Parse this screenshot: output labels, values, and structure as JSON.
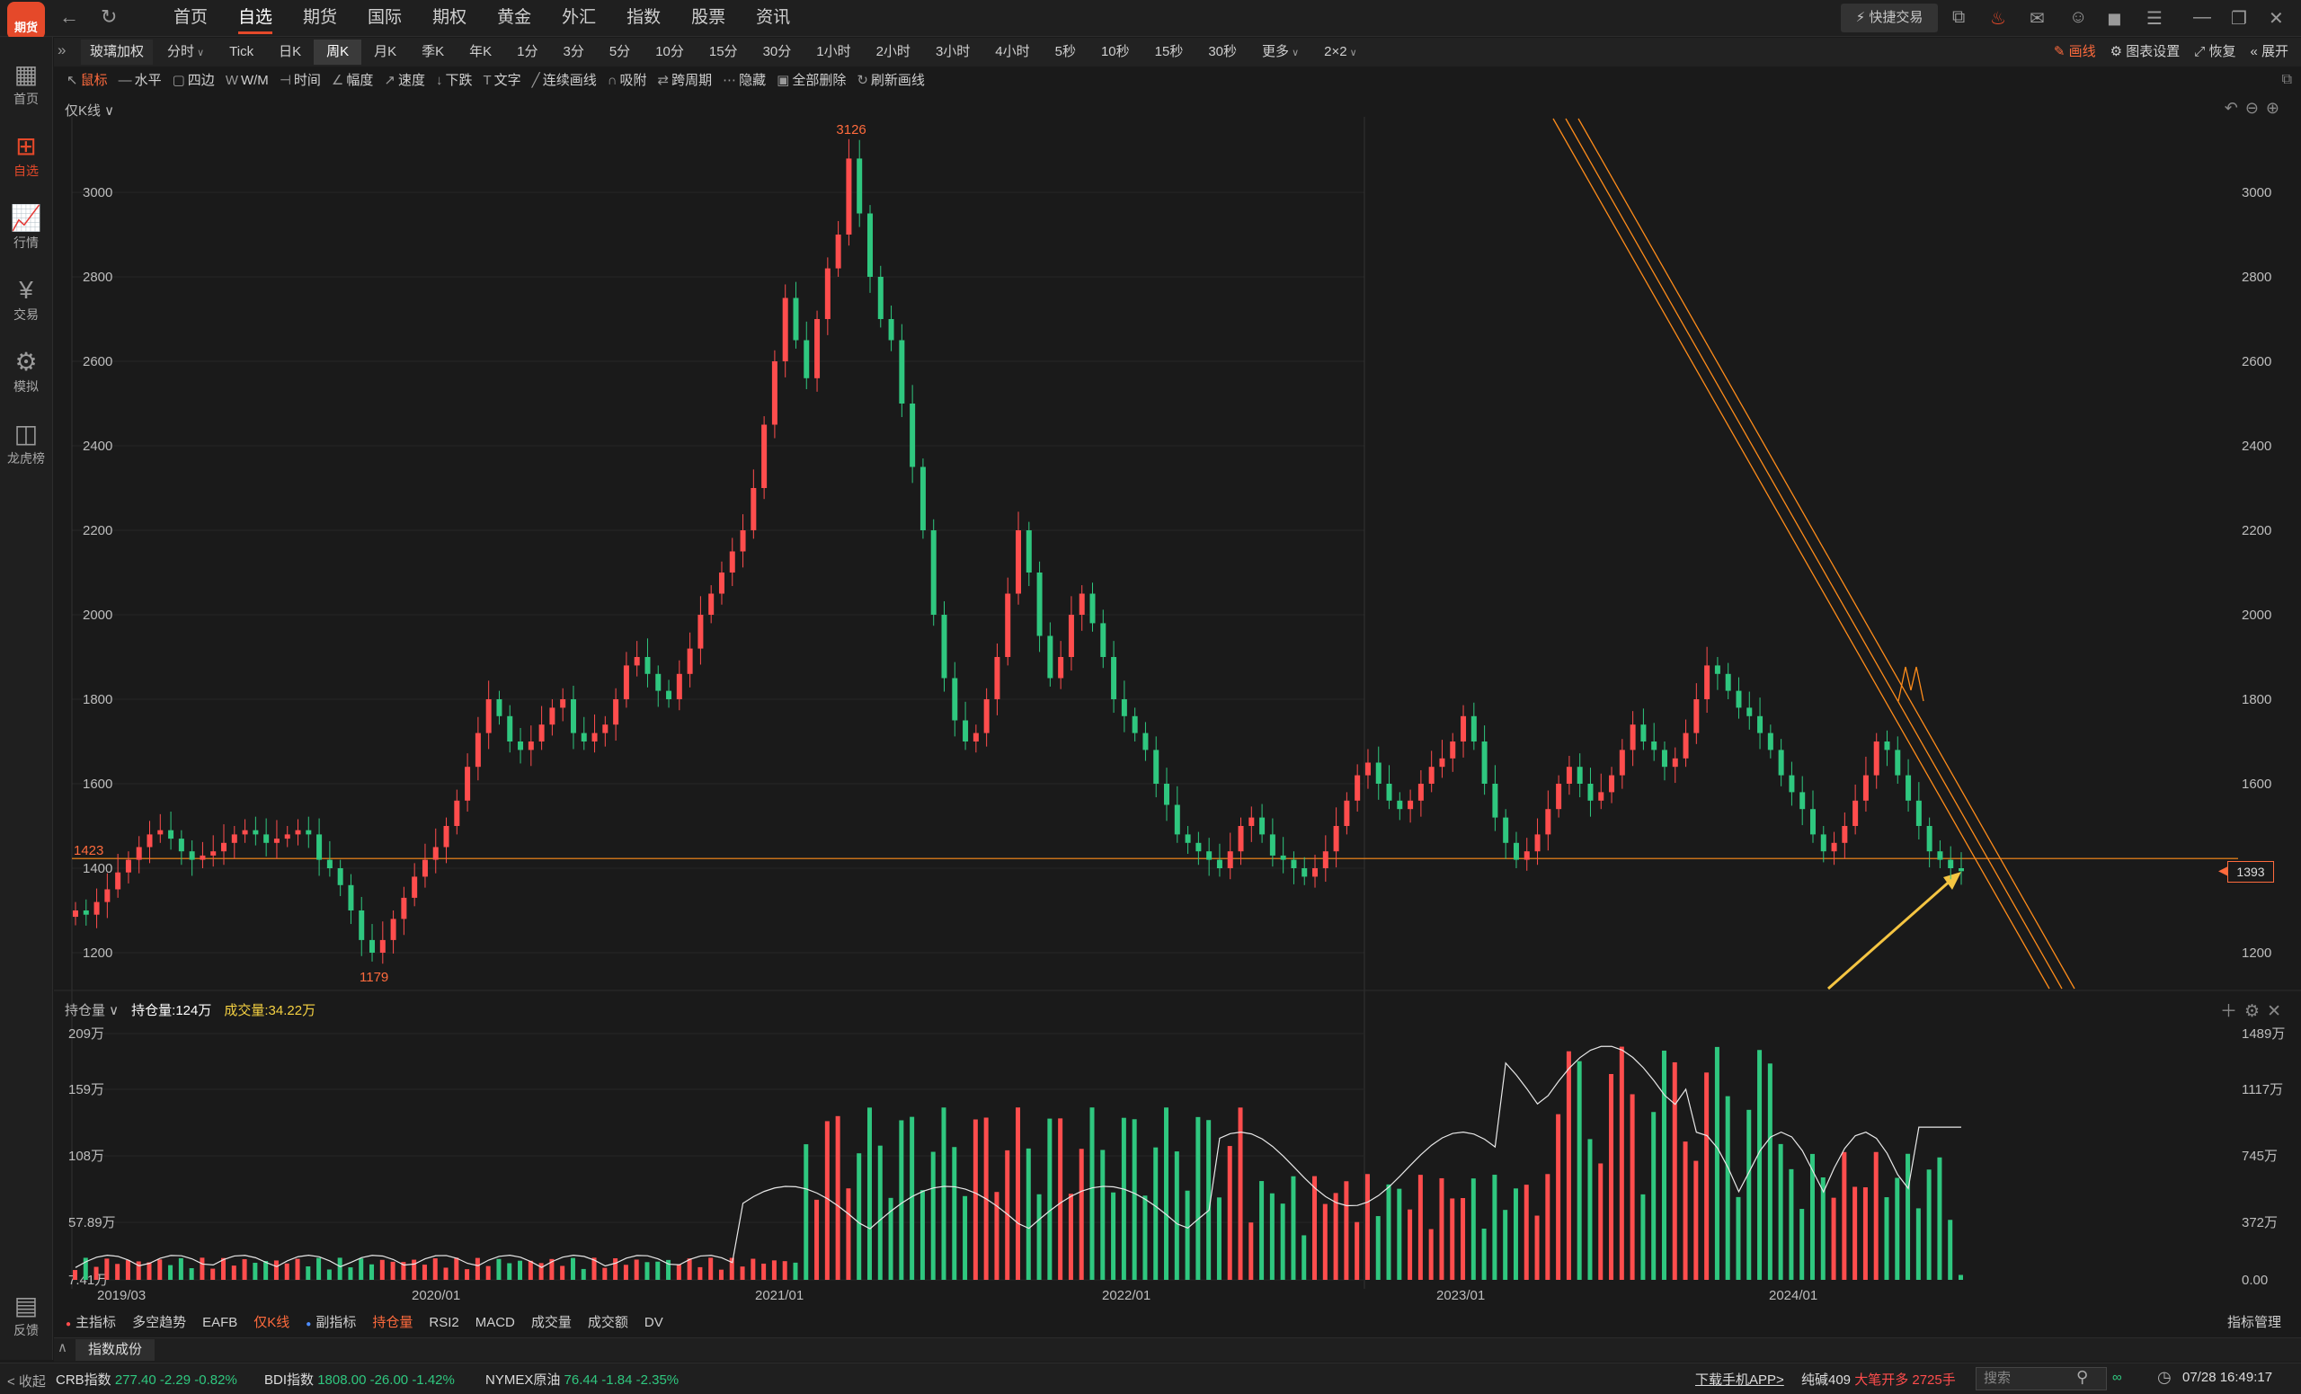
{
  "app": {
    "logo_text": "期货"
  },
  "nav": {
    "back_icon": "back-arrow-icon",
    "refresh_icon": "refresh-icon",
    "items": [
      "首页",
      "自选",
      "期货",
      "国际",
      "期权",
      "黄金",
      "外汇",
      "指数",
      "股票",
      "资讯"
    ],
    "active": "自选"
  },
  "topbar": {
    "quick_trade": "快捷交易"
  },
  "sidebar": {
    "items": [
      {
        "label": "首页",
        "icon": "grid-icon"
      },
      {
        "label": "自选",
        "icon": "plus-square-icon",
        "active": true
      },
      {
        "label": "行情",
        "icon": "chart-icon"
      },
      {
        "label": "交易",
        "icon": "yen-icon"
      },
      {
        "label": "模拟",
        "icon": "gamepad-icon"
      },
      {
        "label": "龙虎榜",
        "icon": "database-icon"
      },
      {
        "label": "反馈",
        "icon": "message-icon"
      },
      {
        "label": "收起",
        "icon": "collapse-icon"
      }
    ]
  },
  "period_bar": {
    "instrument": "玻璃加权",
    "periods": [
      "分时",
      "Tick",
      "日K",
      "周K",
      "月K",
      "季K",
      "年K",
      "1分",
      "3分",
      "5分",
      "10分",
      "15分",
      "30分",
      "1小时",
      "2小时",
      "3小时",
      "4小时",
      "5秒",
      "10秒",
      "15秒",
      "30秒",
      "更多",
      "2×2"
    ],
    "selected": "周K",
    "right_tools": [
      "画线",
      "图表设置",
      "恢复",
      "展开"
    ]
  },
  "draw_tools": [
    "鼠标",
    "水平",
    "四边",
    "W/M",
    "时间",
    "幅度",
    "速度",
    "下跌",
    "文字",
    "连续画线",
    "吸附",
    "跨周期",
    "隐藏",
    "全部删除",
    "刷新画线"
  ],
  "chart": {
    "mode_label": "仅K线",
    "y_ticks": [
      "3000",
      "2800",
      "2600",
      "2400",
      "2200",
      "2000",
      "1800",
      "1600",
      "1400",
      "1200"
    ],
    "high_label": "3126",
    "low_label": "1179",
    "hline_label": "1423",
    "last_price": "1393"
  },
  "chart_data": [
    {
      "type": "candlestick",
      "title": "玻璃加权",
      "period": "周K",
      "ylim": [
        1150,
        3150
      ],
      "y_ticks": [
        1200,
        1400,
        1600,
        1800,
        2000,
        2200,
        2400,
        2600,
        2800,
        3000
      ],
      "annotations": {
        "max": 3126,
        "min": 1179,
        "horizontal_line": 1423,
        "last": 1393
      },
      "close_series_approx": [
        1300,
        1290,
        1320,
        1350,
        1390,
        1420,
        1450,
        1480,
        1490,
        1470,
        1440,
        1420,
        1430,
        1440,
        1460,
        1480,
        1490,
        1480,
        1460,
        1470,
        1480,
        1490,
        1480,
        1420,
        1400,
        1360,
        1300,
        1230,
        1200,
        1230,
        1280,
        1330,
        1380,
        1420,
        1450,
        1500,
        1560,
        1640,
        1720,
        1800,
        1760,
        1700,
        1680,
        1700,
        1740,
        1780,
        1800,
        1720,
        1700,
        1720,
        1740,
        1800,
        1880,
        1900,
        1860,
        1820,
        1800,
        1860,
        1920,
        2000,
        2050,
        2100,
        2150,
        2200,
        2300,
        2450,
        2600,
        2750,
        2650,
        2560,
        2700,
        2820,
        2900,
        3080,
        2950,
        2800,
        2700,
        2650,
        2500,
        2350,
        2200,
        2000,
        1850,
        1750,
        1700,
        1720,
        1800,
        1900,
        2050,
        2200,
        2100,
        1950,
        1850,
        1900,
        2000,
        2050,
        1980,
        1900,
        1800,
        1760,
        1720,
        1680,
        1600,
        1550,
        1480,
        1460,
        1440,
        1420,
        1400,
        1440,
        1500,
        1520,
        1480,
        1430,
        1420,
        1400,
        1380,
        1400,
        1440,
        1500,
        1560,
        1620,
        1650,
        1600,
        1560,
        1540,
        1560,
        1600,
        1640,
        1660,
        1700,
        1760,
        1700,
        1600,
        1520,
        1460,
        1420,
        1440,
        1480,
        1540,
        1600,
        1640,
        1600,
        1560,
        1580,
        1620,
        1680,
        1740,
        1700,
        1680,
        1640,
        1660,
        1720,
        1800,
        1880,
        1860,
        1820,
        1780,
        1760,
        1720,
        1680,
        1620,
        1580,
        1540,
        1480,
        1440,
        1460,
        1500,
        1560,
        1620,
        1700,
        1680,
        1620,
        1560,
        1500,
        1440,
        1420,
        1400,
        1393
      ]
    },
    {
      "type": "bar",
      "title": "持仓量",
      "series": [
        {
          "name": "持仓量",
          "latest": "124万"
        },
        {
          "name": "成交量",
          "latest": "34.22万"
        }
      ],
      "left_axis": [
        "209万",
        "159万",
        "108万",
        "57.89万",
        "7.41万"
      ],
      "right_axis": [
        "1489万",
        "1117万",
        "745万",
        "372万",
        "0.00"
      ],
      "x_ticks": [
        "2019/03",
        "2020/01",
        "2021/01",
        "2022/01",
        "2023/01",
        "2024/01"
      ]
    }
  ],
  "volume_header": {
    "mode_label": "持仓量",
    "hold_text": "持仓量:124万",
    "vol_text": "成交量:34.22万"
  },
  "indicator_tabs": [
    "主指标",
    "多空趋势",
    "EAFB",
    "仅K线",
    "副指标",
    "RSI2",
    "MACD",
    "成交量",
    "成交额",
    "DV"
  ],
  "indicator_tabs_extra": {
    "hold": "持仓量",
    "manage": "指标管理",
    "sub_tab": "指数成份"
  },
  "status_bar": {
    "collapse": "< 收起",
    "quotes": [
      {
        "name": "CRB指数",
        "price": "277.40",
        "chg": "-2.29",
        "pct": "-0.82%"
      },
      {
        "name": "BDI指数",
        "price": "1808.00",
        "chg": "-26.00",
        "pct": "-1.42%"
      },
      {
        "name": "NYMEX原油",
        "price": "76.44",
        "chg": "-1.84",
        "pct": "-2.35%"
      }
    ],
    "download": "下载手机APP>",
    "ticker_name": "纯碱409",
    "ticker_msg": "大笔开多 2725手",
    "search_placeholder": "搜索",
    "datetime": "07/28 16:49:17"
  },
  "colors": {
    "accent": "#e5492a",
    "up": "#ff4d4d",
    "down": "#2fc77f",
    "drawline": "#ff8c1a"
  }
}
